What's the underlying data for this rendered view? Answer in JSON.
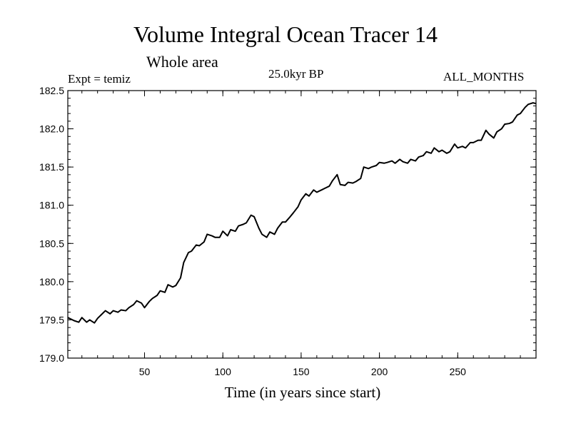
{
  "title": "Volume Integral Ocean Tracer 14",
  "subtitle": "Whole area",
  "expt_label": "Expt = temiz",
  "period_label": "25.0kyr BP",
  "months_label": "ALL_MONTHS",
  "chart_data": {
    "type": "line",
    "title": "Volume Integral Ocean Tracer 14",
    "xlabel": "Time (in years since start)",
    "ylabel": "",
    "xlim": [
      1,
      300
    ],
    "ylim": [
      179.0,
      182.5
    ],
    "xticks": [
      50,
      100,
      150,
      200,
      250
    ],
    "yticks": [
      179.0,
      179.5,
      180.0,
      180.5,
      181.0,
      181.5,
      182.0,
      182.5
    ],
    "ytick_labels": [
      "179.0",
      "179.5",
      "180.0",
      "180.5",
      "181.0",
      "181.5",
      "182.0",
      "182.5"
    ],
    "series": [
      {
        "name": "Tracer 14",
        "color": "#000000",
        "x": [
          1,
          5,
          8,
          10,
          13,
          15,
          18,
          20,
          23,
          25,
          28,
          30,
          33,
          35,
          38,
          40,
          43,
          45,
          48,
          50,
          53,
          55,
          58,
          60,
          63,
          65,
          68,
          70,
          73,
          75,
          78,
          80,
          83,
          85,
          88,
          90,
          93,
          95,
          98,
          100,
          103,
          105,
          108,
          110,
          113,
          115,
          118,
          120,
          123,
          125,
          128,
          130,
          133,
          135,
          138,
          140,
          143,
          145,
          148,
          150,
          153,
          155,
          158,
          160,
          163,
          165,
          168,
          170,
          173,
          175,
          178,
          180,
          183,
          185,
          188,
          190,
          193,
          195,
          198,
          200,
          203,
          205,
          208,
          210,
          213,
          215,
          218,
          220,
          223,
          225,
          228,
          230,
          233,
          235,
          238,
          240,
          243,
          245,
          248,
          250,
          253,
          255,
          258,
          260,
          263,
          265,
          268,
          270,
          273,
          275,
          278,
          280,
          283,
          285,
          288,
          290,
          293,
          295,
          298,
          300
        ],
        "y": [
          179.53,
          179.49,
          179.47,
          179.53,
          179.47,
          179.5,
          179.46,
          179.52,
          179.58,
          179.62,
          179.58,
          179.62,
          179.6,
          179.63,
          179.62,
          179.66,
          179.7,
          179.75,
          179.72,
          179.66,
          179.74,
          179.78,
          179.82,
          179.88,
          179.86,
          179.96,
          179.93,
          179.95,
          180.05,
          180.25,
          180.38,
          180.4,
          180.48,
          180.47,
          180.52,
          180.62,
          180.6,
          180.58,
          180.58,
          180.66,
          180.6,
          180.68,
          180.66,
          180.73,
          180.75,
          180.77,
          180.87,
          180.85,
          180.7,
          180.62,
          180.58,
          180.65,
          180.62,
          180.7,
          180.78,
          180.78,
          180.85,
          180.9,
          180.98,
          181.07,
          181.15,
          181.12,
          181.2,
          181.17,
          181.2,
          181.22,
          181.25,
          181.32,
          181.4,
          181.27,
          181.26,
          181.3,
          181.29,
          181.31,
          181.35,
          181.5,
          181.48,
          181.5,
          181.52,
          181.56,
          181.55,
          181.56,
          181.58,
          181.55,
          181.6,
          181.57,
          181.55,
          181.6,
          181.58,
          181.63,
          181.65,
          181.7,
          181.68,
          181.75,
          181.7,
          181.72,
          181.68,
          181.7,
          181.8,
          181.75,
          181.77,
          181.75,
          181.82,
          181.82,
          181.85,
          181.85,
          181.98,
          181.93,
          181.88,
          181.96,
          182.0,
          182.06,
          182.07,
          182.09,
          182.18,
          182.2,
          182.28,
          182.32,
          182.34,
          182.33
        ]
      }
    ]
  }
}
